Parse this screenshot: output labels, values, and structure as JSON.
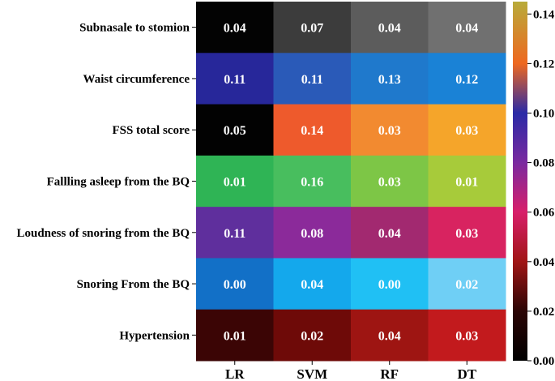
{
  "chart_data": {
    "type": "heatmap",
    "title": "",
    "xlabel": "",
    "ylabel": "",
    "columns": [
      "LR",
      "SVM",
      "RF",
      "DT"
    ],
    "rows": [
      "Subnasale to stomion",
      "Waist circumference",
      "FSS total score",
      "Fallling asleep from the BQ",
      "Loudness of snoring from the BQ",
      "Snoring From the BQ",
      "Hypertension"
    ],
    "cell_labels": [
      [
        "0.04",
        "0.07",
        "0.04",
        "0.04"
      ],
      [
        "0.11",
        "0.11",
        "0.13",
        "0.12"
      ],
      [
        "0.05",
        "0.14",
        "0.03",
        "0.03"
      ],
      [
        "0.01",
        "0.16",
        "0.03",
        "0.01"
      ],
      [
        "0.11",
        "0.08",
        "0.04",
        "0.03"
      ],
      [
        "0.00",
        "0.04",
        "0.00",
        "0.02"
      ],
      [
        "0.01",
        "0.02",
        "0.04",
        "0.03"
      ]
    ],
    "cell_colors": [
      [
        "#030303",
        "#3c3c3c",
        "#5c5c5c",
        "#707070"
      ],
      [
        "#27279a",
        "#2a5ab8",
        "#1f79cc",
        "#1a82d6"
      ],
      [
        "#020202",
        "#ee5a2c",
        "#f28a30",
        "#f5a52a"
      ],
      [
        "#2fb455",
        "#48be5e",
        "#7dc646",
        "#a7cb3a"
      ],
      [
        "#5f2f9d",
        "#8b2a9a",
        "#a22970",
        "#d82360"
      ],
      [
        "#1270c7",
        "#14a8ec",
        "#20c0f4",
        "#6fcff5"
      ],
      [
        "#3b0505",
        "#6e0a08",
        "#9e1512",
        "#c21a1d"
      ]
    ],
    "colorbar": {
      "range": [
        0.0,
        0.145
      ],
      "ticks": [
        0.0,
        0.02,
        0.04,
        0.06,
        0.08,
        0.1,
        0.12,
        0.14
      ],
      "tick_labels": [
        "0.00",
        "0.02",
        "0.04",
        "0.06",
        "0.08",
        "0.10",
        "0.12",
        "0.14"
      ],
      "colormap_stops": [
        {
          "value": 0.0,
          "color": "#000000"
        },
        {
          "value": 0.02,
          "color": "#2b0505"
        },
        {
          "value": 0.04,
          "color": "#a01515"
        },
        {
          "value": 0.06,
          "color": "#d81f6a"
        },
        {
          "value": 0.08,
          "color": "#7a2aa0"
        },
        {
          "value": 0.1,
          "color": "#2a2aa6"
        },
        {
          "value": 0.12,
          "color": "#ee6820"
        },
        {
          "value": 0.145,
          "color": "#b8ab3a"
        }
      ]
    }
  }
}
